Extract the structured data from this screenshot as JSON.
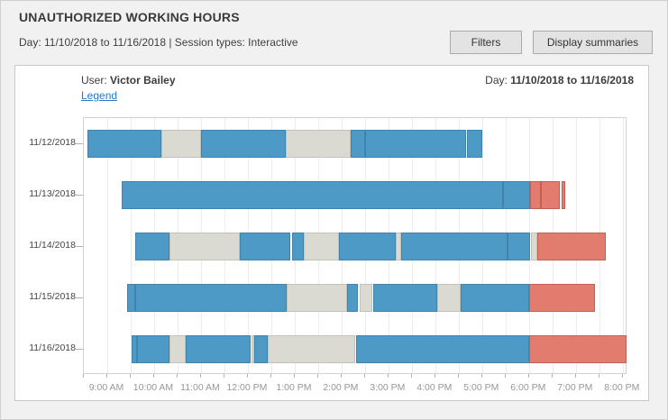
{
  "header": {
    "title": "UNAUTHORIZED WORKING HOURS",
    "subtitle": "Day: 11/10/2018 to 11/16/2018 | Session types: Interactive",
    "filters_button": "Filters",
    "summaries_button": "Display summaries"
  },
  "panel": {
    "user_label": "User:",
    "user_name": "Victor Bailey",
    "legend_link": "Legend",
    "day_label": "Day:",
    "day_value": "11/10/2018 to 11/16/2018"
  },
  "chart_data": {
    "type": "gantt",
    "x_axis": {
      "min": 8.5,
      "max": 20.1,
      "grid_step": 0.5,
      "tick_hours": [
        9,
        10,
        11,
        12,
        13,
        14,
        15,
        16,
        17,
        18,
        19,
        20
      ],
      "tick_labels": [
        "9:00 AM",
        "10:00 AM",
        "11:00 AM",
        "12:00 PM",
        "1:00 PM",
        "2:00 PM",
        "3:00 PM",
        "4:00 PM",
        "5:00 PM",
        "6:00 PM",
        "7:00 PM",
        "8:00 PM"
      ]
    },
    "colors": {
      "work": "#4e9ac6",
      "work_border": "#4184ab",
      "idle": "#dbdad2",
      "idle_border": "#c3c2ba",
      "unauthorized": "#e17c6f",
      "unauthorized_border": "#bf6157"
    },
    "rows": [
      {
        "date": "11/12/2018",
        "segments": [
          [
            8.58,
            10.15,
            "work"
          ],
          [
            10.15,
            11.0,
            "idle"
          ],
          [
            11.0,
            12.8,
            "work"
          ],
          [
            12.8,
            14.2,
            "idle"
          ],
          [
            14.2,
            14.5,
            "work"
          ],
          [
            14.5,
            16.65,
            "work"
          ],
          [
            16.68,
            17.0,
            "work"
          ]
        ]
      },
      {
        "date": "11/13/2018",
        "segments": [
          [
            9.3,
            17.45,
            "work"
          ],
          [
            17.45,
            18.02,
            "work"
          ],
          [
            18.02,
            18.25,
            "unauthorized"
          ],
          [
            18.25,
            18.65,
            "unauthorized"
          ],
          [
            18.7,
            18.78,
            "unauthorized"
          ]
        ]
      },
      {
        "date": "11/14/2018",
        "segments": [
          [
            9.6,
            10.33,
            "work"
          ],
          [
            10.33,
            11.83,
            "idle"
          ],
          [
            11.83,
            12.9,
            "work"
          ],
          [
            12.95,
            13.2,
            "work"
          ],
          [
            13.2,
            13.95,
            "idle"
          ],
          [
            13.95,
            15.15,
            "work"
          ],
          [
            15.15,
            15.27,
            "idle"
          ],
          [
            15.27,
            17.55,
            "work"
          ],
          [
            17.55,
            18.02,
            "work"
          ],
          [
            18.05,
            18.17,
            "idle"
          ],
          [
            18.17,
            19.63,
            "unauthorized"
          ]
        ]
      },
      {
        "date": "11/15/2018",
        "segments": [
          [
            9.42,
            9.6,
            "work"
          ],
          [
            9.6,
            12.83,
            "work"
          ],
          [
            12.83,
            14.12,
            "idle"
          ],
          [
            14.12,
            14.35,
            "work"
          ],
          [
            14.38,
            14.65,
            "idle"
          ],
          [
            14.68,
            16.05,
            "work"
          ],
          [
            16.05,
            16.55,
            "idle"
          ],
          [
            16.55,
            18.0,
            "work"
          ],
          [
            18.0,
            19.4,
            "unauthorized"
          ]
        ]
      },
      {
        "date": "11/16/2018",
        "segments": [
          [
            9.52,
            9.63,
            "work"
          ],
          [
            9.63,
            10.33,
            "work"
          ],
          [
            10.33,
            10.67,
            "idle"
          ],
          [
            10.67,
            12.05,
            "work"
          ],
          [
            12.08,
            12.13,
            "idle"
          ],
          [
            12.13,
            12.42,
            "work"
          ],
          [
            12.42,
            14.3,
            "idle"
          ],
          [
            14.3,
            18.0,
            "work"
          ],
          [
            18.0,
            20.08,
            "unauthorized"
          ]
        ]
      }
    ]
  }
}
